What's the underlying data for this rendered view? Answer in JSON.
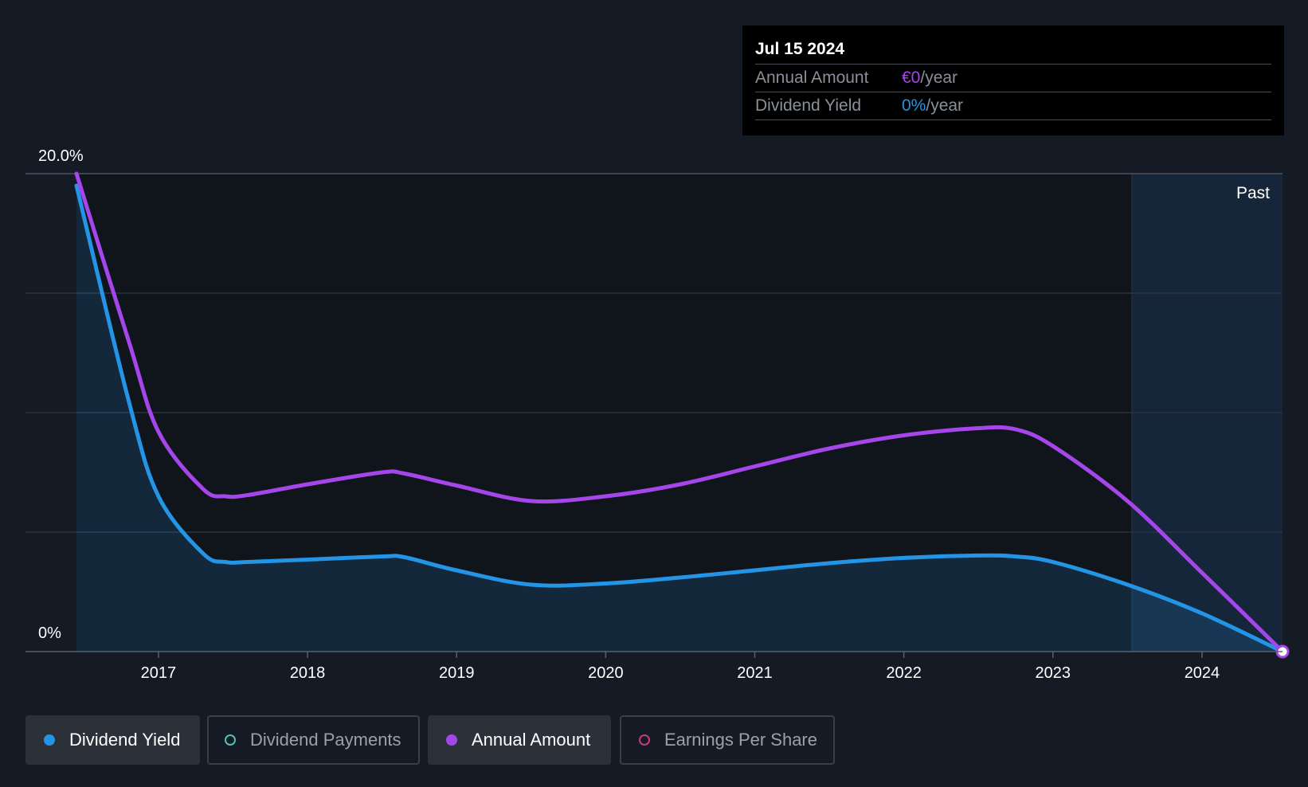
{
  "tooltip": {
    "date": "Jul 15 2024",
    "annual_amount_label": "Annual Amount",
    "annual_amount_value": "€0",
    "annual_amount_unit": "/year",
    "dividend_yield_label": "Dividend Yield",
    "dividend_yield_value": "0%",
    "dividend_yield_unit": "/year"
  },
  "past_label": "Past",
  "legend": [
    {
      "label": "Dividend Yield",
      "color": "#2394e6",
      "active": true
    },
    {
      "label": "Dividend Payments",
      "color": "#4ec1b0",
      "active": false
    },
    {
      "label": "Annual Amount",
      "color": "#a546ea",
      "active": true
    },
    {
      "label": "Earnings Per Share",
      "color": "#c93a7d",
      "active": false
    }
  ],
  "chart_data": {
    "type": "line",
    "ylim": [
      0,
      20
    ],
    "y_tick_labels": [
      "20.0%",
      "0%"
    ],
    "x_tick_labels": [
      "2017",
      "2018",
      "2019",
      "2020",
      "2021",
      "2022",
      "2023",
      "2024"
    ],
    "xlim": [
      2016.45,
      2024.54
    ],
    "grid": true,
    "past_region_start": 2023.53,
    "series": [
      {
        "name": "Dividend Yield",
        "color": "#2394e6",
        "filled": true,
        "x": [
          2016.45,
          2016.8,
          2017.0,
          2017.3,
          2017.45,
          2017.6,
          2018.0,
          2018.5,
          2018.65,
          2019.0,
          2019.5,
          2020.0,
          2020.5,
          2021.0,
          2021.5,
          2022.0,
          2022.5,
          2022.75,
          2023.0,
          2023.5,
          2024.0,
          2024.54
        ],
        "y": [
          19.5,
          10.5,
          6.5,
          4.1,
          3.75,
          3.75,
          3.85,
          3.98,
          3.95,
          3.4,
          2.8,
          2.85,
          3.1,
          3.4,
          3.7,
          3.92,
          4.02,
          3.98,
          3.75,
          2.8,
          1.6,
          0.0
        ]
      },
      {
        "name": "Annual Amount",
        "color": "#a546ea",
        "filled": false,
        "x": [
          2016.45,
          2016.8,
          2017.0,
          2017.3,
          2017.45,
          2017.6,
          2018.0,
          2018.5,
          2018.65,
          2019.0,
          2019.5,
          2020.0,
          2020.5,
          2021.0,
          2021.5,
          2022.0,
          2022.5,
          2022.75,
          2023.0,
          2023.5,
          2024.0,
          2024.54
        ],
        "y": [
          20.0,
          13.0,
          9.2,
          6.8,
          6.5,
          6.55,
          7.0,
          7.5,
          7.45,
          6.95,
          6.3,
          6.5,
          7.0,
          7.75,
          8.5,
          9.05,
          9.35,
          9.3,
          8.6,
          6.3,
          3.3,
          0.0
        ]
      }
    ]
  }
}
